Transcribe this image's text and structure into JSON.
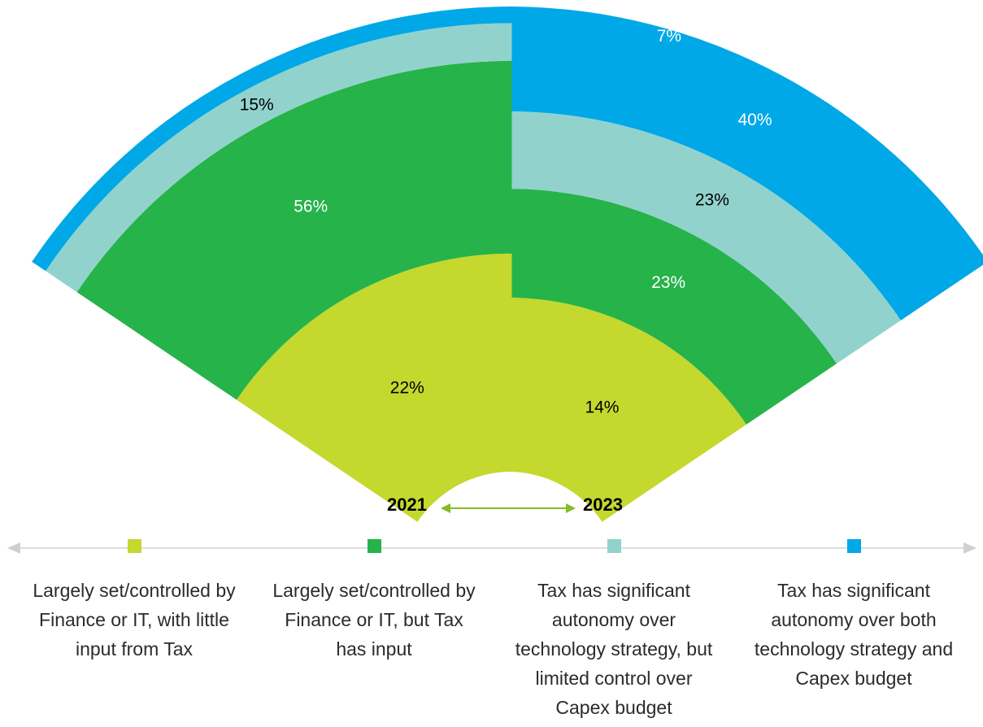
{
  "chart_data": {
    "type": "radial-stacked-sector",
    "title": "",
    "categories": [
      "2021",
      "2023"
    ],
    "series": [
      {
        "name": "Largely set/controlled by Finance or IT, with little input from Tax",
        "color": "#c4d82e",
        "values": [
          14,
          22
        ]
      },
      {
        "name": "Largely set/controlled by Finance or IT, but Tax has input",
        "color": "#26b34a",
        "values": [
          23,
          56
        ]
      },
      {
        "name": "Tax has significant autonomy over technology strategy, but limited control over Capex budget",
        "color": "#91d3cc",
        "values": [
          23,
          15
        ]
      },
      {
        "name": "Tax has significant autonomy over both technology strategy and Capex budget",
        "color": "#00a8e7",
        "values": [
          40,
          7
        ]
      }
    ],
    "data_labels": [
      [
        "14%",
        "23%",
        "23%",
        "40%"
      ],
      [
        "22%",
        "56%",
        "15%",
        "7%"
      ]
    ],
    "label_colors": [
      [
        "#000000",
        "#ffffff",
        "#000000",
        "#ffffff"
      ],
      [
        "#000000",
        "#ffffff",
        "#000000",
        "#ffffff"
      ]
    ]
  },
  "years": {
    "left": "2021",
    "right": "2023"
  },
  "arrow_color": "#86bc25",
  "axis_color": "#d0d0d0",
  "legend": [
    {
      "color": "#c4d82e",
      "label": "Largely set/controlled by Finance or IT, with little input from Tax"
    },
    {
      "color": "#26b34a",
      "label": "Largely set/controlled by Finance or IT, but Tax has input"
    },
    {
      "color": "#91d3cc",
      "label": "Tax has significant autonomy over technology strategy, but limited control over Capex budget"
    },
    {
      "color": "#00a8e7",
      "label": "Tax has significant autonomy over both technology strategy and Capex budget"
    }
  ]
}
